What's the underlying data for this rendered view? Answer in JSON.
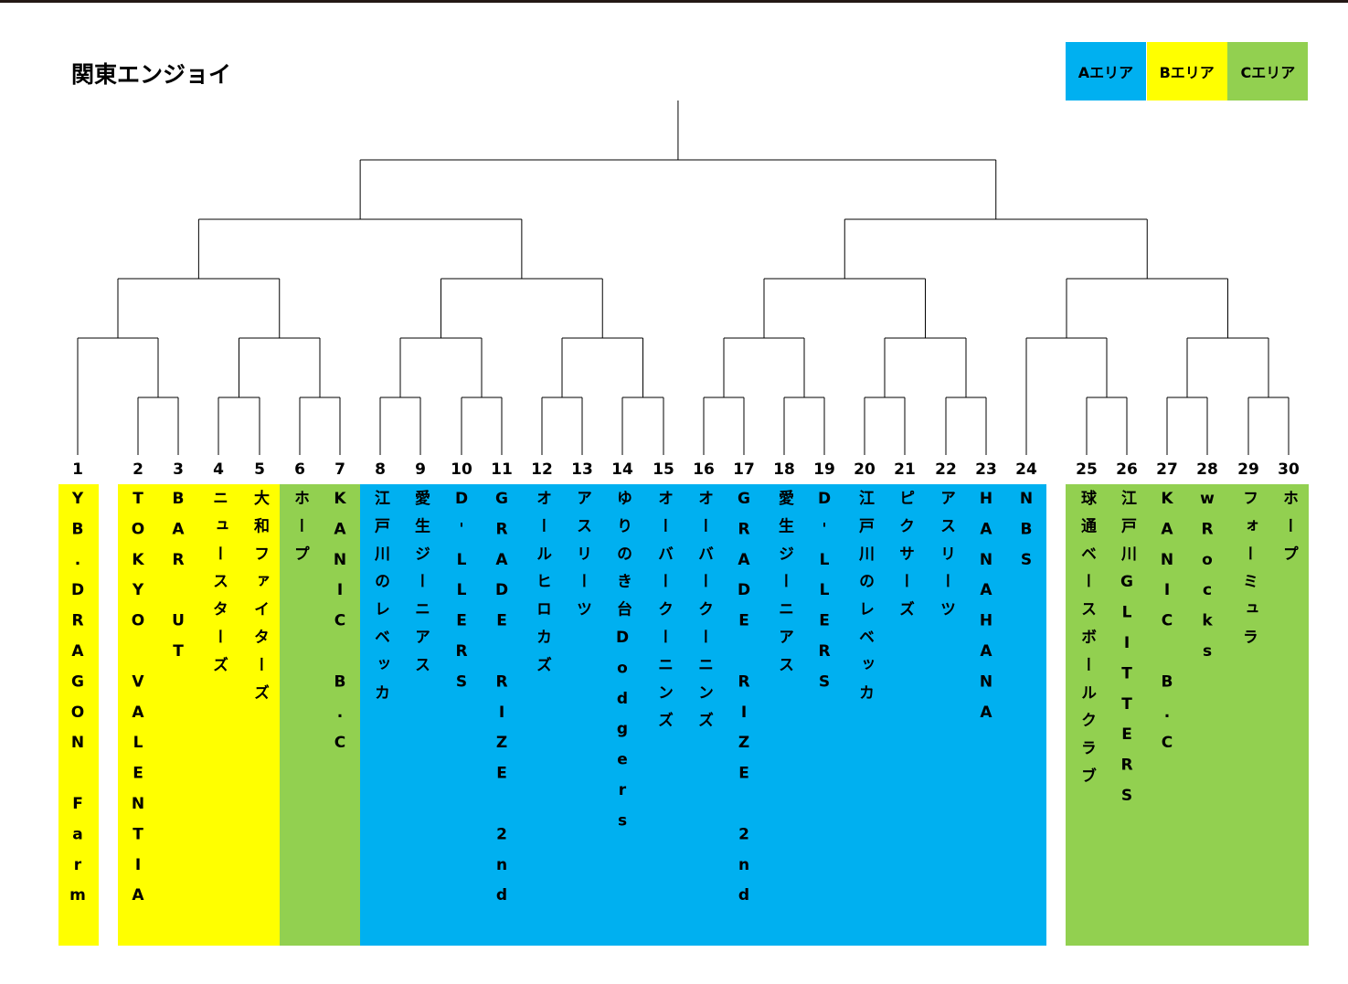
{
  "title": "関東エンジョイ",
  "legend": [
    {
      "label": "Aエリア",
      "color": "#00b0f0"
    },
    {
      "label": "Bエリア",
      "color": "#ffff00"
    },
    {
      "label": "Cエリア",
      "color": "#92d050"
    }
  ],
  "teams": [
    {
      "number": "1",
      "name": "YB.DRAGON Farm"
    },
    {
      "number": "2",
      "name": "TOKYO VALENTIA"
    },
    {
      "number": "3",
      "name": "BAR UT"
    },
    {
      "number": "4",
      "name": "ニュースターズ"
    },
    {
      "number": "5",
      "name": "大和ファイターズ"
    },
    {
      "number": "6",
      "name": "ホープ"
    },
    {
      "number": "7",
      "name": "KANIC B.C"
    },
    {
      "number": "8",
      "name": "江戸川のレベッカ"
    },
    {
      "number": "9",
      "name": "愛生ジーニアス"
    },
    {
      "number": "10",
      "name": "D'LLERS"
    },
    {
      "number": "11",
      "name": "GRADE RIZE 2nd"
    },
    {
      "number": "12",
      "name": "オールヒロカズ"
    },
    {
      "number": "13",
      "name": "アスリーツ"
    },
    {
      "number": "14",
      "name": "ゆりのき台Dodgers"
    },
    {
      "number": "15",
      "name": "オーバークーニンズ"
    },
    {
      "number": "16",
      "name": "オーバークーニンズ"
    },
    {
      "number": "17",
      "name": "GRADE RIZE 2nd"
    },
    {
      "number": "18",
      "name": "愛生ジーニアス"
    },
    {
      "number": "19",
      "name": "D'LLERS"
    },
    {
      "number": "20",
      "name": "江戸川のレベッカ"
    },
    {
      "number": "21",
      "name": "ピクサーズ"
    },
    {
      "number": "22",
      "name": "アスリーツ"
    },
    {
      "number": "23",
      "name": "HANAHANA"
    },
    {
      "number": "24",
      "name": "NBS"
    },
    {
      "number": "25",
      "name": "球通ベースボールクラブ"
    },
    {
      "number": "26",
      "name": "江戸川GLITTERS"
    },
    {
      "number": "27",
      "name": "KANIC B.C"
    },
    {
      "number": "28",
      "name": "wRocks"
    },
    {
      "number": "29",
      "name": "フォーミュラ"
    },
    {
      "number": "30",
      "name": "ホープ"
    }
  ]
}
